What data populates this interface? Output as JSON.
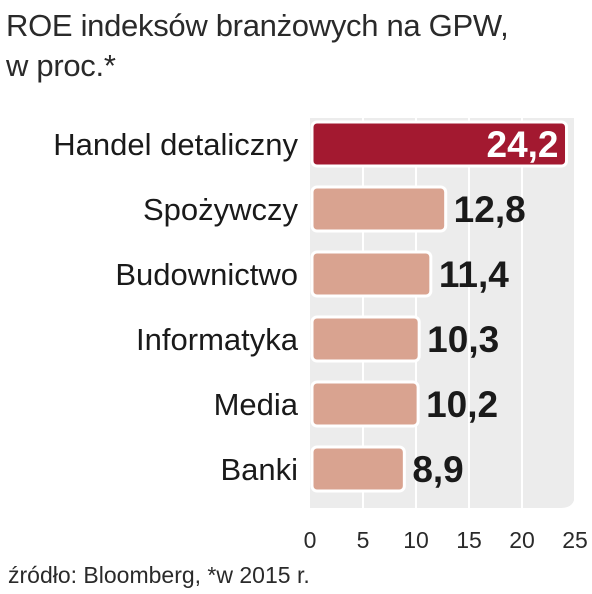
{
  "title_line1": "ROE indeksów branżowych na GPW,",
  "title_line2": "w proc.*",
  "source": "źródło: Bloomberg, *w 2015 r.",
  "colors": {
    "highlight_bar": "#a31930",
    "bar": "#d9a390",
    "plot_background": "#ececec",
    "gridline": "#ffffff",
    "text": "#1a1a1a"
  },
  "chart_data": {
    "type": "bar",
    "orientation": "horizontal",
    "categories": [
      "Handel detaliczny",
      "Spożywczy",
      "Budownictwo",
      "Informatyka",
      "Media",
      "Banki"
    ],
    "values": [
      24.2,
      12.8,
      11.4,
      10.3,
      10.2,
      8.9
    ],
    "value_labels": [
      "24,2",
      "12,8",
      "11,4",
      "10,3",
      "10,2",
      "8,9"
    ],
    "highlighted_index": 0,
    "xlim": [
      0,
      25
    ],
    "x_ticks": [
      0,
      5,
      10,
      15,
      20,
      25
    ],
    "x_tick_labels": [
      "0",
      "5",
      "10",
      "15",
      "20",
      "25"
    ],
    "grid": true
  }
}
